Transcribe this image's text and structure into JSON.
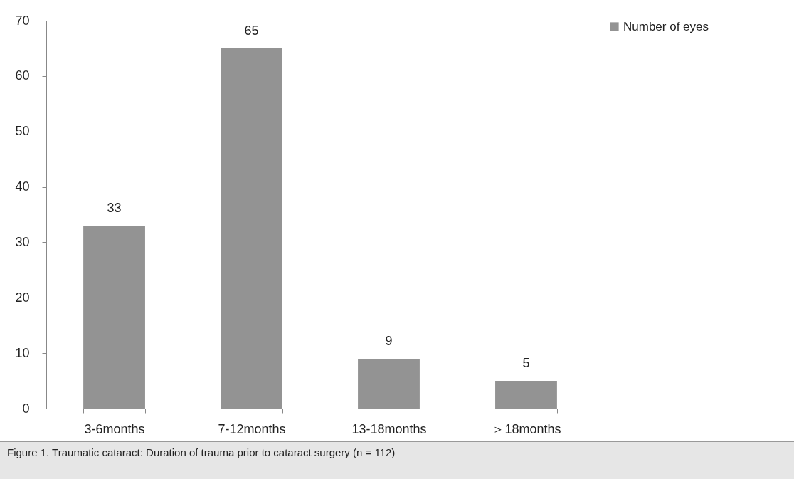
{
  "chart_data": {
    "type": "bar",
    "categories": [
      "3-6months",
      "7-12months",
      "13-18months",
      "＞18months"
    ],
    "series": [
      {
        "name": "Number of eyes",
        "color": "#939393",
        "values": [
          33,
          65,
          9,
          5
        ]
      }
    ],
    "ylim": [
      0,
      70
    ],
    "yticks": [
      0,
      10,
      20,
      30,
      40,
      50,
      60,
      70
    ],
    "data_labels": true,
    "grid": false,
    "legend": "right",
    "annotations": [
      "Figure 1. Traumatic cataract: Duration of trauma prior to cataract surgery (n = 112)"
    ]
  }
}
